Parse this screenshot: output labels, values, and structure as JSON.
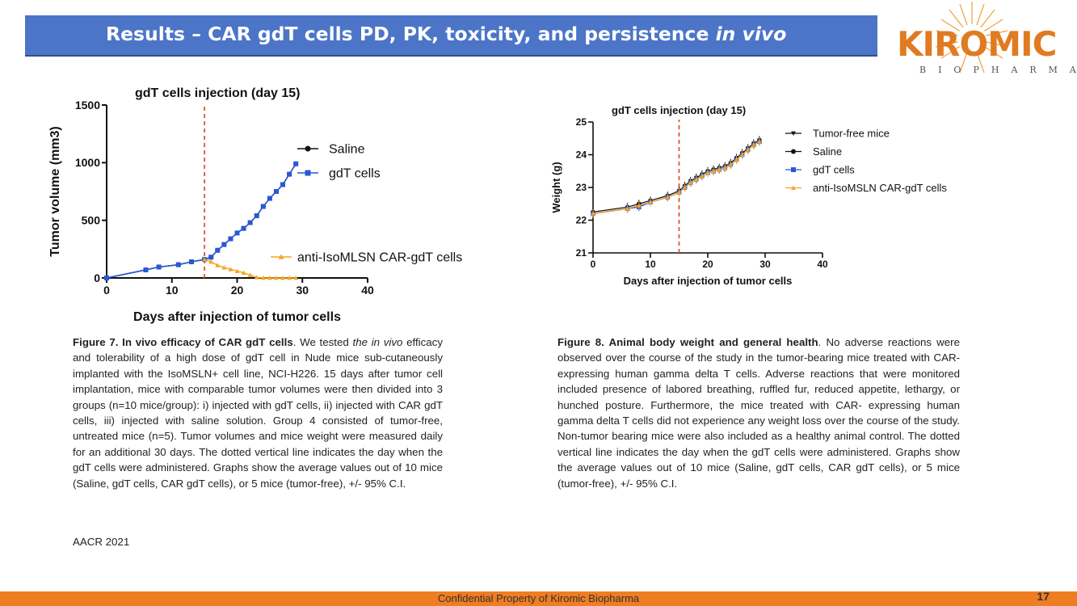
{
  "slide": {
    "title_main": "Results – CAR gdT cells PD, PK, toxicity, and persistence ",
    "title_italic": "in vivo",
    "logo_word": "KIROMIC",
    "logo_sub": "BIOPHARMA",
    "source": "AACR 2021",
    "footer": "Confidential Property of Kiromic Biopharma",
    "page_number": "17",
    "colors": {
      "title_bg": "#4c75c8",
      "footer_bg": "#ef7d22",
      "logo": "#e07b22",
      "saline": "#111111",
      "gdt": "#2a57d6",
      "car": "#f5a623",
      "dashed": "#e0533a"
    }
  },
  "captions": {
    "fig7": {
      "bold": "Figure 7. In vivo efficacy of CAR gdT cells",
      "t1": ". We tested ",
      "italic": "the in vivo",
      "t2": " efficacy and tolerability of a high dose of gdT cell in Nude mice sub-cutaneously implanted with the IsoMSLN+ cell line, NCI-H226. 15 days after tumor cell implantation, mice with comparable tumor volumes were then divided into 3 groups (n=10 mice/group): i) injected with gdT cells, ii) injected with CAR gdT cells, iii) injected with saline solution. Group 4 consisted of tumor-free, untreated mice (n=5). Tumor volumes and mice weight were measured daily for an additional 30 days. The dotted vertical line indicates the day when the gdT cells were administered. Graphs show the average values out of 10 mice (Saline, gdT cells, CAR gdT cells), or 5 mice (tumor-free), +/- 95% C.I."
    },
    "fig8": {
      "bold": "Figure 8. Animal body weight and general health",
      "t1": ". No adverse reactions were observed over the course of the study in the tumor-bearing mice treated with CAR- expressing human gamma delta T cells. Adverse reactions that were monitored included presence of labored breathing, ruffled fur, reduced appetite, lethargy, or hunched posture. Furthermore, the mice treated with CAR- expressing human gamma delta T cells did not experience any weight loss over the course of the study. Non-tumor bearing mice were also included as a healthy animal control. The dotted vertical line indicates the day when the gdT cells were administered. Graphs show the average values out of 10 mice (Saline, gdT cells, CAR gdT cells), or 5 mice (tumor-free), +/- 95% C.I."
    }
  },
  "chart_data": [
    {
      "type": "line",
      "title": "gdT cells injection (day 15)",
      "xlabel": "Days after injection of tumor cells",
      "ylabel": "Tumor volume (mm3)",
      "xlim": [
        0,
        40
      ],
      "ylim": [
        0,
        1500
      ],
      "xticks": [
        0,
        10,
        20,
        30,
        40
      ],
      "yticks": [
        0,
        500,
        1000,
        1500
      ],
      "injection_day": 15,
      "series": [
        {
          "name": "Saline",
          "x": [
            0,
            6,
            8,
            11,
            13,
            15,
            16,
            17,
            18,
            19,
            20,
            21,
            22,
            23,
            24,
            25,
            26,
            27,
            28,
            29
          ],
          "y": [
            0,
            70,
            95,
            115,
            140,
            160,
            180,
            240,
            290,
            340,
            390,
            430,
            480,
            540,
            620,
            690,
            750,
            810,
            900,
            990
          ],
          "color": "#111111",
          "marker": "circle"
        },
        {
          "name": "gdT cells",
          "x": [
            0,
            6,
            8,
            11,
            13,
            15,
            16,
            17,
            18,
            19,
            20,
            21,
            22,
            23,
            24,
            25,
            26,
            27,
            28,
            29
          ],
          "y": [
            0,
            70,
            95,
            115,
            140,
            160,
            180,
            240,
            290,
            340,
            390,
            430,
            480,
            540,
            620,
            690,
            750,
            810,
            900,
            990
          ],
          "color": "#2a57d6",
          "marker": "square"
        },
        {
          "name": "anti-IsoMLSN CAR-gdT cells",
          "x": [
            15,
            16,
            17,
            18,
            19,
            20,
            21,
            22,
            23,
            24,
            25,
            26,
            27,
            28,
            29
          ],
          "y": [
            160,
            140,
            110,
            90,
            75,
            60,
            45,
            25,
            5,
            0,
            0,
            0,
            0,
            0,
            0
          ],
          "color": "#f5a623",
          "marker": "triangle"
        }
      ]
    },
    {
      "type": "line",
      "title": "gdT cells injection (day 15)",
      "xlabel": "Days after injection of tumor cells",
      "ylabel": "Weight (g)",
      "xlim": [
        0,
        40
      ],
      "ylim": [
        21,
        25
      ],
      "xticks": [
        0,
        10,
        20,
        30,
        40
      ],
      "yticks": [
        21,
        22,
        23,
        24,
        25
      ],
      "injection_day": 15,
      "series": [
        {
          "name": "Tumor-free mice",
          "x": [
            0,
            6,
            8,
            10,
            13,
            15,
            16,
            17,
            18,
            19,
            20,
            21,
            22,
            23,
            24,
            25,
            26,
            27,
            28,
            29
          ],
          "y": [
            22.2,
            22.35,
            22.45,
            22.55,
            22.7,
            22.85,
            23.0,
            23.15,
            23.25,
            23.35,
            23.45,
            23.5,
            23.55,
            23.6,
            23.7,
            23.85,
            24.0,
            24.15,
            24.3,
            24.4
          ],
          "color": "#111111",
          "marker": "triangle-down"
        },
        {
          "name": "Saline",
          "x": [
            0,
            6,
            8,
            10,
            13,
            15,
            16,
            17,
            18,
            19,
            20,
            21,
            22,
            23,
            24,
            25,
            26,
            27,
            28,
            29
          ],
          "y": [
            22.25,
            22.4,
            22.5,
            22.6,
            22.75,
            22.9,
            23.05,
            23.2,
            23.3,
            23.4,
            23.5,
            23.55,
            23.6,
            23.65,
            23.75,
            23.9,
            24.05,
            24.2,
            24.35,
            24.45
          ],
          "color": "#111111",
          "marker": "circle"
        },
        {
          "name": "gdT cells",
          "x": [
            0,
            6,
            8,
            10,
            13,
            15,
            16,
            17,
            18,
            19,
            20,
            21,
            22,
            23,
            24,
            25,
            26,
            27,
            28,
            29
          ],
          "y": [
            22.2,
            22.35,
            22.4,
            22.55,
            22.7,
            22.85,
            23.0,
            23.15,
            23.25,
            23.35,
            23.45,
            23.5,
            23.55,
            23.6,
            23.7,
            23.85,
            24.0,
            24.15,
            24.3,
            24.4
          ],
          "color": "#2a57d6",
          "marker": "square"
        },
        {
          "name": "anti-IsoMSLN CAR-gdT cells",
          "x": [
            0,
            6,
            8,
            10,
            13,
            15,
            16,
            17,
            18,
            19,
            20,
            21,
            22,
            23,
            24,
            25,
            26,
            27,
            28,
            29
          ],
          "y": [
            22.2,
            22.35,
            22.45,
            22.55,
            22.7,
            22.85,
            23.0,
            23.15,
            23.25,
            23.35,
            23.45,
            23.5,
            23.55,
            23.6,
            23.7,
            23.85,
            24.0,
            24.15,
            24.3,
            24.4
          ],
          "color": "#f5a623",
          "marker": "triangle"
        }
      ]
    }
  ]
}
